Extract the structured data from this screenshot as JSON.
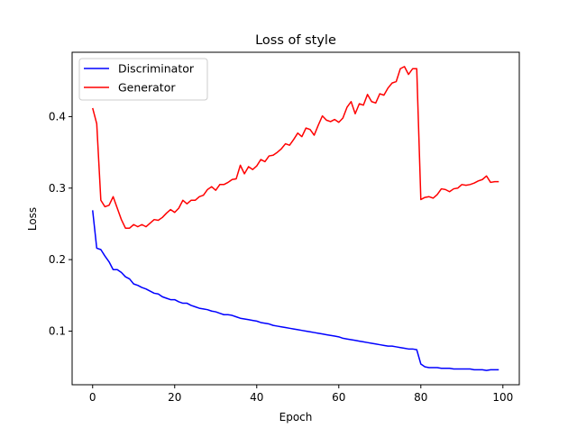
{
  "chart_data": {
    "type": "line",
    "title": "Loss of style",
    "xlabel": "Epoch",
    "ylabel": "Loss",
    "xlim": [
      -5,
      104
    ],
    "ylim": [
      0.025,
      0.49
    ],
    "xticks": [
      0,
      20,
      40,
      60,
      80,
      100
    ],
    "yticks": [
      0.1,
      0.2,
      0.3,
      0.4
    ],
    "ytick_labels": [
      "0.1",
      "0.2",
      "0.3",
      "0.4"
    ],
    "grid": false,
    "legend_position": "top-left",
    "series": [
      {
        "name": "Discriminator",
        "color": "#0000ff",
        "values": [
          0.269,
          0.216,
          0.214,
          0.205,
          0.197,
          0.186,
          0.186,
          0.182,
          0.176,
          0.173,
          0.166,
          0.164,
          0.161,
          0.159,
          0.156,
          0.153,
          0.152,
          0.148,
          0.146,
          0.144,
          0.144,
          0.141,
          0.139,
          0.139,
          0.136,
          0.134,
          0.132,
          0.131,
          0.13,
          0.128,
          0.127,
          0.125,
          0.123,
          0.123,
          0.122,
          0.12,
          0.118,
          0.117,
          0.116,
          0.115,
          0.114,
          0.112,
          0.111,
          0.11,
          0.108,
          0.107,
          0.106,
          0.105,
          0.104,
          0.103,
          0.102,
          0.101,
          0.1,
          0.099,
          0.098,
          0.097,
          0.096,
          0.095,
          0.094,
          0.093,
          0.092,
          0.09,
          0.089,
          0.088,
          0.087,
          0.086,
          0.085,
          0.084,
          0.083,
          0.082,
          0.081,
          0.08,
          0.079,
          0.079,
          0.078,
          0.077,
          0.076,
          0.075,
          0.075,
          0.074,
          0.054,
          0.05,
          0.049,
          0.049,
          0.049,
          0.048,
          0.048,
          0.048,
          0.047,
          0.047,
          0.047,
          0.047,
          0.047,
          0.046,
          0.046,
          0.046,
          0.045,
          0.046,
          0.046,
          0.046
        ]
      },
      {
        "name": "Generator",
        "color": "#ff0000",
        "values": [
          0.412,
          0.39,
          0.283,
          0.274,
          0.276,
          0.288,
          0.272,
          0.256,
          0.244,
          0.244,
          0.249,
          0.246,
          0.249,
          0.246,
          0.251,
          0.256,
          0.255,
          0.259,
          0.265,
          0.27,
          0.266,
          0.272,
          0.283,
          0.278,
          0.283,
          0.283,
          0.288,
          0.29,
          0.298,
          0.302,
          0.297,
          0.305,
          0.305,
          0.308,
          0.312,
          0.313,
          0.332,
          0.32,
          0.33,
          0.326,
          0.331,
          0.34,
          0.337,
          0.345,
          0.346,
          0.35,
          0.355,
          0.362,
          0.36,
          0.368,
          0.377,
          0.372,
          0.384,
          0.382,
          0.374,
          0.388,
          0.401,
          0.395,
          0.393,
          0.396,
          0.392,
          0.398,
          0.413,
          0.421,
          0.404,
          0.418,
          0.416,
          0.431,
          0.421,
          0.419,
          0.432,
          0.43,
          0.44,
          0.447,
          0.449,
          0.467,
          0.47,
          0.459,
          0.467,
          0.467,
          0.284,
          0.287,
          0.288,
          0.286,
          0.291,
          0.299,
          0.298,
          0.295,
          0.299,
          0.3,
          0.305,
          0.304,
          0.305,
          0.307,
          0.31,
          0.312,
          0.317,
          0.308,
          0.309,
          0.309
        ]
      }
    ]
  }
}
